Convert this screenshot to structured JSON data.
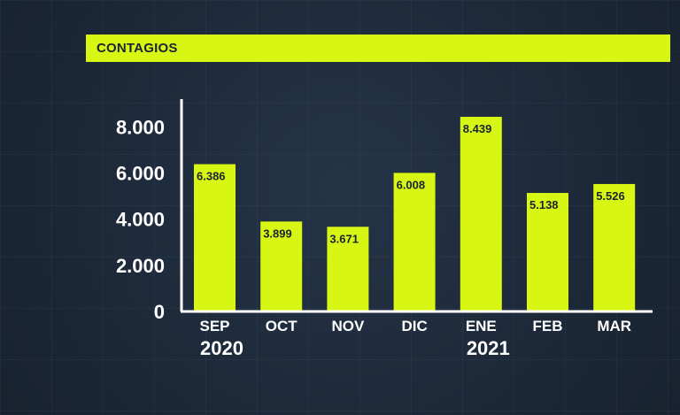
{
  "title": "CONTAGIOS",
  "colors": {
    "bar": "#d8f614",
    "axis": "#ffffff",
    "background": "#1e2b3c",
    "label_text": "#1b2230"
  },
  "chart_data": {
    "type": "bar",
    "title": "CONTAGIOS",
    "categories": [
      "SEP",
      "OCT",
      "NOV",
      "DIC",
      "ENE",
      "FEB",
      "MAR"
    ],
    "values": [
      6386,
      3899,
      3671,
      6008,
      8439,
      5138,
      5526
    ],
    "value_labels": [
      "6.386",
      "3.899",
      "3.671",
      "6.008",
      "8.439",
      "5.138",
      "5.526"
    ],
    "yticks": [
      0,
      2000,
      4000,
      6000,
      8000
    ],
    "ytick_labels": [
      "0",
      "2.000",
      "4.000",
      "6.000",
      "8.000"
    ],
    "year_labels": [
      {
        "text": "2020",
        "category": "SEP"
      },
      {
        "text": "2021",
        "category": "ENE"
      }
    ],
    "ylim": [
      0,
      8439
    ],
    "xlabel": "",
    "ylabel": "",
    "grid": false,
    "legend": "none"
  }
}
